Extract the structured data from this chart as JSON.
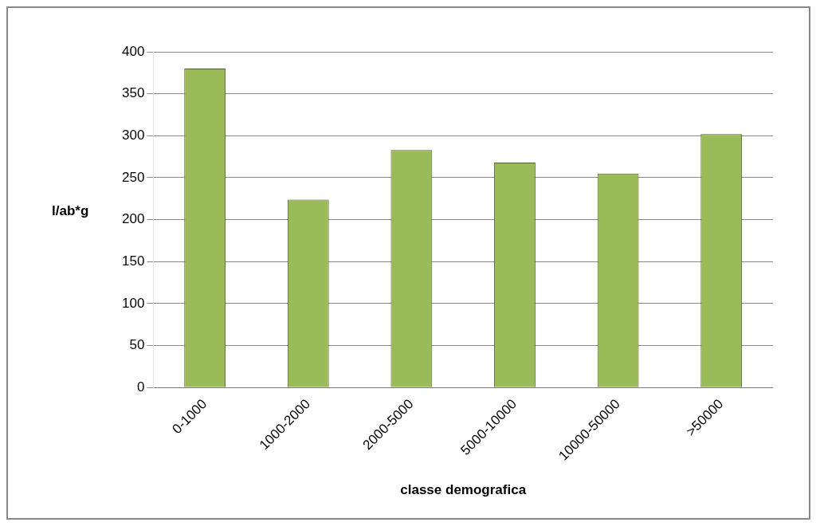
{
  "chart_data": {
    "type": "bar",
    "xlabel": "classe demografica",
    "ylabel": "l/ab*g",
    "categories": [
      "0-1000",
      "1000-2000",
      "2000-5000",
      "5000-10000",
      "10000-50000",
      ">50000"
    ],
    "values": [
      380,
      224,
      283,
      268,
      255,
      302
    ],
    "color": "#9bbb59",
    "ylim": [
      0,
      400
    ],
    "yticks": [
      0,
      50,
      100,
      150,
      200,
      250,
      300,
      350,
      400
    ],
    "grid": "y",
    "legend": false
  }
}
